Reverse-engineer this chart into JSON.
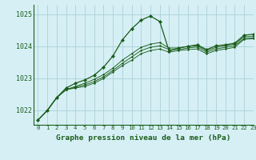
{
  "title": "Graphe pression niveau de la mer (hPa)",
  "background_color": "#d6eff5",
  "grid_color": "#b0d4dc",
  "line_color": "#1a5e1a",
  "xlim": [
    -0.5,
    23
  ],
  "ylim": [
    1021.55,
    1025.3
  ],
  "yticks": [
    1022,
    1023,
    1024,
    1025
  ],
  "xticks": [
    0,
    1,
    2,
    3,
    4,
    5,
    6,
    7,
    8,
    9,
    10,
    11,
    12,
    13,
    14,
    15,
    16,
    17,
    18,
    19,
    20,
    21,
    22,
    23
  ],
  "series": [
    [
      1021.7,
      1022.0,
      1022.4,
      1022.7,
      1022.85,
      1022.95,
      1023.1,
      1023.35,
      1023.7,
      1024.2,
      1024.55,
      1024.82,
      1024.95,
      1024.78,
      1023.85,
      1023.95,
      1024.0,
      1024.05,
      1023.9,
      1024.02,
      1024.05,
      1024.1,
      1024.35,
      1024.38
    ],
    [
      1021.7,
      1022.0,
      1022.4,
      1022.65,
      1022.75,
      1022.85,
      1022.97,
      1023.12,
      1023.32,
      1023.57,
      1023.77,
      1023.97,
      1024.07,
      1024.12,
      1023.95,
      1023.95,
      1024.0,
      1024.02,
      1023.87,
      1023.97,
      1024.02,
      1024.07,
      1024.3,
      1024.32
    ],
    [
      1021.7,
      1022.0,
      1022.4,
      1022.65,
      1022.72,
      1022.8,
      1022.9,
      1023.05,
      1023.25,
      1023.47,
      1023.67,
      1023.87,
      1023.97,
      1024.02,
      1023.9,
      1023.9,
      1023.95,
      1023.98,
      1023.82,
      1023.92,
      1023.97,
      1024.02,
      1024.25,
      1024.27
    ],
    [
      1021.7,
      1022.0,
      1022.4,
      1022.65,
      1022.7,
      1022.75,
      1022.85,
      1023.0,
      1023.2,
      1023.4,
      1023.57,
      1023.77,
      1023.87,
      1023.92,
      1023.82,
      1023.87,
      1023.9,
      1023.92,
      1023.77,
      1023.87,
      1023.92,
      1023.97,
      1024.22,
      1024.24
    ]
  ]
}
